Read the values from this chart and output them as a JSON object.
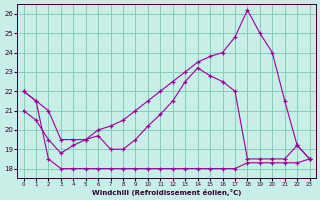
{
  "xlabel": "Windchill (Refroidissement éolien,°C)",
  "background_color": "#c8eee8",
  "grid_color": "#88ccbb",
  "line_color": "#990099",
  "xlim": [
    -0.5,
    23.5
  ],
  "ylim": [
    17.5,
    26.5
  ],
  "yticks": [
    18,
    19,
    20,
    21,
    22,
    23,
    24,
    25,
    26
  ],
  "xticks": [
    0,
    1,
    2,
    3,
    4,
    5,
    6,
    7,
    8,
    9,
    10,
    11,
    12,
    13,
    14,
    15,
    16,
    17,
    18,
    19,
    20,
    21,
    22,
    23
  ],
  "series1_x": [
    0,
    1,
    2,
    3,
    4,
    5,
    6,
    7,
    8,
    9,
    10,
    11,
    12,
    13,
    14,
    15,
    16,
    17,
    18,
    19,
    20,
    21,
    22,
    23
  ],
  "series1_y": [
    22.0,
    21.5,
    21.0,
    19.5,
    19.5,
    19.5,
    19.7,
    19.0,
    19.0,
    19.5,
    20.2,
    20.8,
    21.5,
    22.5,
    23.2,
    22.8,
    22.5,
    22.0,
    18.5,
    18.5,
    18.5,
    18.5,
    19.2,
    18.5
  ],
  "series2_x": [
    0,
    1,
    2,
    3,
    4,
    5,
    6,
    7,
    8,
    9,
    10,
    11,
    12,
    13,
    14,
    15,
    16,
    17,
    18,
    19,
    20,
    21,
    22,
    23
  ],
  "series2_y": [
    22.0,
    21.5,
    18.5,
    18.0,
    18.0,
    18.0,
    18.0,
    18.0,
    18.0,
    18.0,
    18.0,
    18.0,
    18.0,
    18.0,
    18.0,
    18.0,
    18.0,
    18.0,
    18.3,
    18.3,
    18.3,
    18.3,
    18.3,
    18.5
  ],
  "series3_x": [
    0,
    1,
    2,
    3,
    4,
    5,
    6,
    7,
    8,
    9,
    10,
    11,
    12,
    13,
    14,
    15,
    16,
    17,
    18,
    19,
    20,
    21,
    22,
    23
  ],
  "series3_y": [
    21.0,
    20.5,
    19.5,
    18.8,
    19.2,
    19.5,
    20.0,
    20.2,
    20.5,
    21.0,
    21.5,
    22.0,
    22.5,
    23.0,
    23.5,
    23.8,
    24.0,
    24.8,
    26.2,
    25.0,
    24.0,
    21.5,
    19.2,
    18.5
  ]
}
